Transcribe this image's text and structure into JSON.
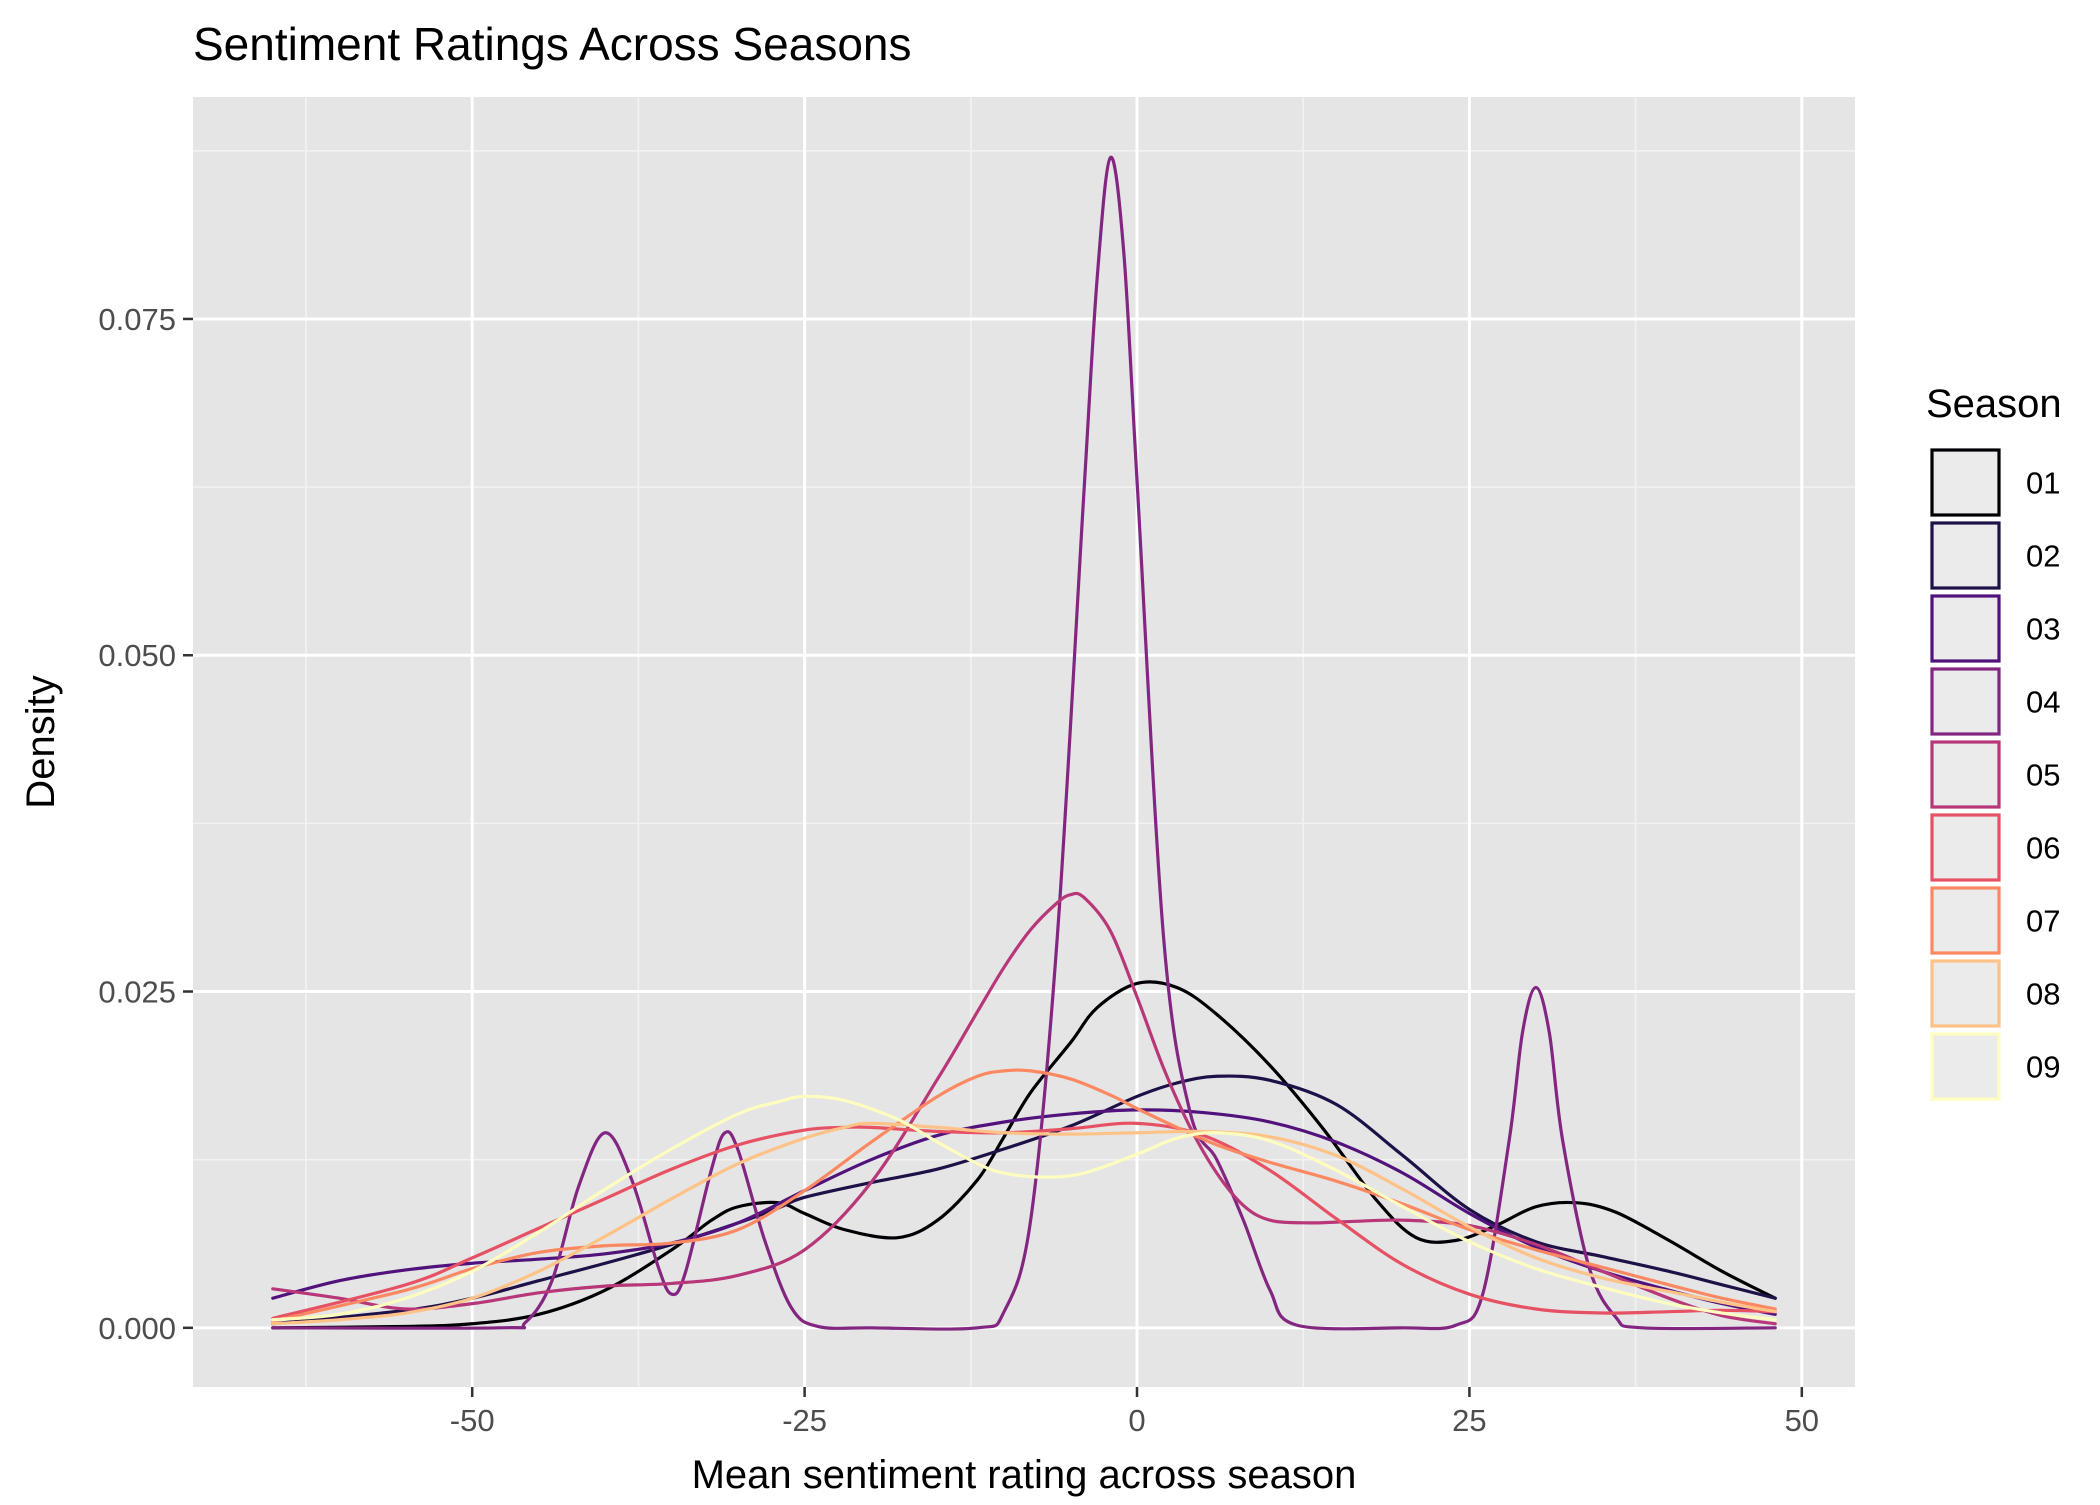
{
  "chart_data": {
    "type": "line",
    "title": "Sentiment Ratings Across Seasons",
    "xlabel": "Mean sentiment rating across season",
    "ylabel": "Density",
    "xlim": [
      -71,
      54
    ],
    "ylim": [
      -0.0044,
      0.0915
    ],
    "x_ticks": [
      -50,
      -25,
      0,
      25,
      50
    ],
    "x_tick_labels": [
      "-50",
      "-25",
      "0",
      "25",
      "50"
    ],
    "y_ticks": [
      0.0,
      0.025,
      0.05,
      0.075
    ],
    "y_tick_labels": [
      "0.000",
      "0.025",
      "0.050",
      "0.075"
    ],
    "grid": true,
    "background": "#e5e5e5",
    "legend": {
      "title": "Season",
      "position": "right"
    },
    "series": [
      {
        "name": "01",
        "color": "#000004",
        "x": [
          -65,
          -55,
          -50,
          -45,
          -40,
          -35,
          -32,
          -30,
          -27,
          -25,
          -22,
          -18,
          -15,
          -12,
          -10,
          -8,
          -5,
          -3,
          0,
          3,
          6,
          10,
          14,
          18,
          21,
          24,
          27,
          30,
          33,
          36,
          40,
          44,
          48
        ],
        "y": [
          0.0,
          0.0001,
          0.0003,
          0.001,
          0.0028,
          0.0058,
          0.008,
          0.009,
          0.0093,
          0.0085,
          0.0073,
          0.0067,
          0.008,
          0.011,
          0.0142,
          0.0175,
          0.0212,
          0.0238,
          0.0256,
          0.0253,
          0.0233,
          0.0195,
          0.0148,
          0.0095,
          0.0067,
          0.0065,
          0.0076,
          0.009,
          0.0093,
          0.0086,
          0.0065,
          0.0042,
          0.0022
        ]
      },
      {
        "name": "02",
        "color": "#1d1147",
        "x": [
          -65,
          -55,
          -50,
          -45,
          -40,
          -35,
          -30,
          -27,
          -25,
          -20,
          -15,
          -10,
          -5,
          0,
          3,
          6,
          10,
          15,
          20,
          25,
          30,
          35,
          40,
          44,
          48
        ],
        "y": [
          0.0003,
          0.0013,
          0.0022,
          0.0035,
          0.0048,
          0.0062,
          0.0078,
          0.0089,
          0.0097,
          0.0108,
          0.0118,
          0.0133,
          0.015,
          0.0172,
          0.0182,
          0.0187,
          0.0184,
          0.0166,
          0.0128,
          0.0088,
          0.0064,
          0.0053,
          0.0042,
          0.0032,
          0.0022
        ]
      },
      {
        "name": "03",
        "color": "#51127c",
        "x": [
          -65,
          -60,
          -55,
          -50,
          -45,
          -40,
          -35,
          -30,
          -25,
          -20,
          -15,
          -10,
          -5,
          0,
          5,
          10,
          15,
          20,
          25,
          30,
          35,
          40,
          44,
          48
        ],
        "y": [
          0.0022,
          0.0035,
          0.0043,
          0.0048,
          0.0051,
          0.0055,
          0.0063,
          0.0078,
          0.0102,
          0.0125,
          0.0143,
          0.0153,
          0.0159,
          0.0162,
          0.016,
          0.0153,
          0.0138,
          0.0115,
          0.0085,
          0.006,
          0.0042,
          0.0028,
          0.0018,
          0.001
        ]
      },
      {
        "name": "04",
        "color": "#832681",
        "x": [
          -65,
          -48,
          -46,
          -44,
          -42,
          -40,
          -38,
          -36,
          -35,
          -34,
          -32,
          -31,
          -30,
          -28,
          -26,
          -24,
          -20,
          -12,
          -10,
          -8,
          -6,
          -4,
          -3,
          -2,
          -1,
          0,
          2,
          4,
          6,
          8,
          10,
          12,
          20,
          24,
          26,
          28,
          29,
          30,
          31,
          32,
          34,
          36,
          38,
          48
        ],
        "y": [
          0.0,
          0.0,
          0.0004,
          0.0035,
          0.0105,
          0.0145,
          0.011,
          0.0045,
          0.0025,
          0.004,
          0.0118,
          0.0145,
          0.0132,
          0.0065,
          0.0015,
          0.0001,
          0.0,
          0.0,
          0.0012,
          0.008,
          0.029,
          0.062,
          0.078,
          0.087,
          0.08,
          0.063,
          0.029,
          0.016,
          0.0125,
          0.008,
          0.0028,
          0.0002,
          0.0,
          0.0002,
          0.0025,
          0.014,
          0.022,
          0.0253,
          0.022,
          0.014,
          0.0045,
          0.0008,
          0.0,
          0.0
        ]
      },
      {
        "name": "05",
        "color": "#b73779",
        "x": [
          -65,
          -60,
          -55,
          -50,
          -45,
          -40,
          -35,
          -30,
          -25,
          -20,
          -15,
          -12,
          -10,
          -8,
          -6,
          -5,
          -4,
          -2,
          0,
          2,
          4,
          6,
          8,
          10,
          13,
          16,
          20,
          25,
          30,
          35,
          40,
          44,
          48
        ],
        "y": [
          0.0029,
          0.0022,
          0.0014,
          0.0018,
          0.0026,
          0.0031,
          0.0033,
          0.0039,
          0.0058,
          0.0108,
          0.0185,
          0.0235,
          0.0268,
          0.0296,
          0.0316,
          0.0322,
          0.032,
          0.0295,
          0.0246,
          0.0193,
          0.0149,
          0.0115,
          0.0091,
          0.008,
          0.0078,
          0.0079,
          0.008,
          0.0076,
          0.0062,
          0.0042,
          0.0022,
          0.0009,
          0.0003
        ]
      },
      {
        "name": "06",
        "color": "#e65164",
        "x": [
          -65,
          -55,
          -50,
          -45,
          -40,
          -35,
          -30,
          -25,
          -22,
          -20,
          -15,
          -10,
          -5,
          0,
          5,
          10,
          15,
          20,
          25,
          30,
          35,
          40,
          44,
          48
        ],
        "y": [
          0.0007,
          0.0032,
          0.0052,
          0.0074,
          0.0096,
          0.0118,
          0.0136,
          0.0147,
          0.0149,
          0.0149,
          0.0146,
          0.0145,
          0.0148,
          0.0152,
          0.0143,
          0.0117,
          0.0081,
          0.0047,
          0.0025,
          0.0014,
          0.0011,
          0.0012,
          0.0013,
          0.0012
        ]
      },
      {
        "name": "07",
        "color": "#fb8861",
        "x": [
          -65,
          -55,
          -50,
          -45,
          -40,
          -35,
          -30,
          -25,
          -20,
          -15,
          -12,
          -10,
          -8,
          -5,
          -2,
          0,
          3,
          6,
          10,
          15,
          20,
          25,
          30,
          35,
          40,
          44,
          48
        ],
        "y": [
          0.0005,
          0.0028,
          0.0044,
          0.0056,
          0.0061,
          0.0063,
          0.0073,
          0.0102,
          0.0138,
          0.0172,
          0.0187,
          0.0191,
          0.0191,
          0.0185,
          0.0173,
          0.0163,
          0.0149,
          0.0136,
          0.0123,
          0.0109,
          0.0092,
          0.0073,
          0.0058,
          0.0045,
          0.0032,
          0.0022,
          0.0014
        ]
      },
      {
        "name": "08",
        "color": "#fec287",
        "x": [
          -65,
          -60,
          -55,
          -50,
          -45,
          -40,
          -35,
          -30,
          -25,
          -22,
          -20,
          -15,
          -10,
          -5,
          0,
          5,
          10,
          15,
          20,
          25,
          30,
          35,
          40,
          44,
          48
        ],
        "y": [
          0.0003,
          0.0006,
          0.0011,
          0.0022,
          0.0042,
          0.0068,
          0.0096,
          0.0122,
          0.0141,
          0.0149,
          0.0152,
          0.0149,
          0.0145,
          0.0144,
          0.0145,
          0.0146,
          0.0142,
          0.0128,
          0.0103,
          0.0075,
          0.0052,
          0.0037,
          0.0027,
          0.0019,
          0.0012
        ]
      },
      {
        "name": "09",
        "color": "#fcfdbf",
        "x": [
          -65,
          -60,
          -55,
          -50,
          -45,
          -40,
          -35,
          -30,
          -27,
          -25,
          -22,
          -18,
          -15,
          -12,
          -10,
          -7,
          -4,
          0,
          3,
          6,
          10,
          15,
          20,
          25,
          30,
          35,
          40,
          44,
          48
        ],
        "y": [
          0.0006,
          0.001,
          0.0022,
          0.0042,
          0.0071,
          0.0103,
          0.0133,
          0.0159,
          0.0168,
          0.0172,
          0.0169,
          0.0155,
          0.0138,
          0.0122,
          0.0115,
          0.0112,
          0.0115,
          0.0129,
          0.0141,
          0.0145,
          0.0139,
          0.0117,
          0.009,
          0.0064,
          0.0044,
          0.003,
          0.0018,
          0.0011,
          0.0006
        ]
      }
    ]
  }
}
